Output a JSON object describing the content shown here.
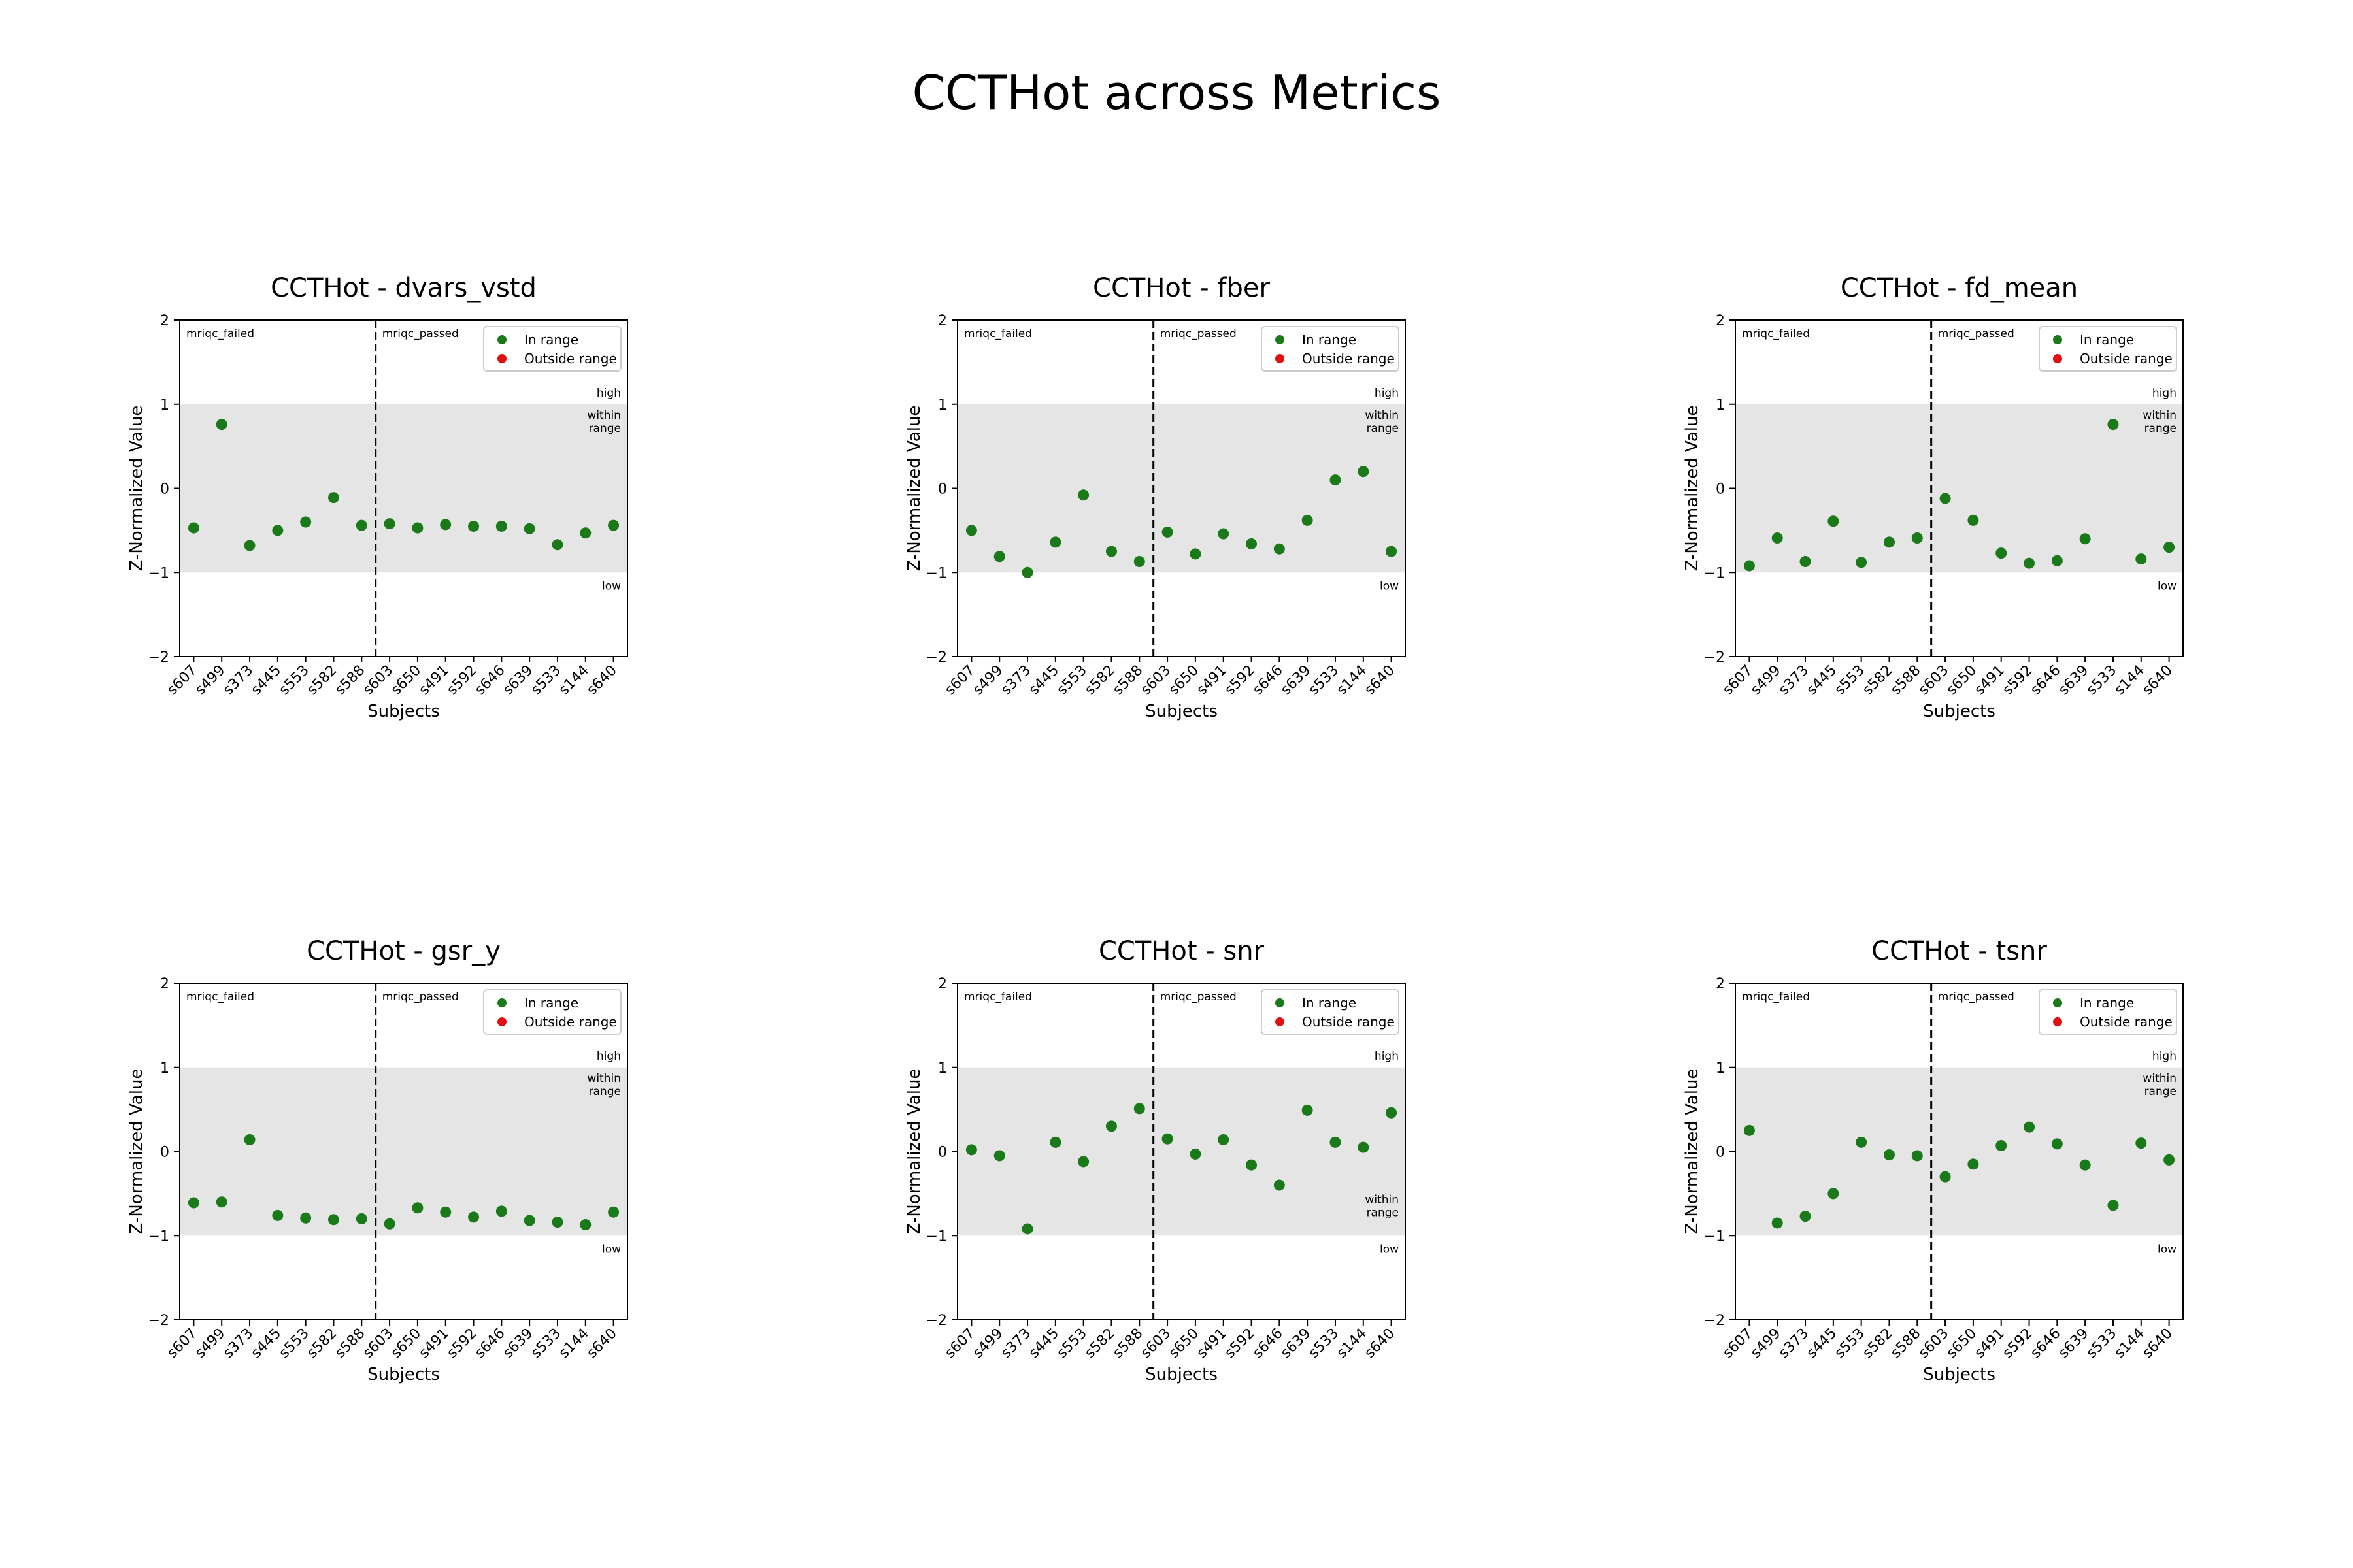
{
  "suptitle": "CCTHot across Metrics",
  "common": {
    "xlabel": "Subjects",
    "ylabel": "Z-Normalized Value",
    "ylim": [
      -2,
      2
    ],
    "yticks": [
      2,
      1,
      0,
      -1,
      -2
    ],
    "ytick_labels": [
      "2",
      "1",
      "0",
      "−1",
      "−2"
    ],
    "shaded_range": [
      -1,
      1
    ],
    "divider_after_index": 6,
    "group_labels": [
      "mriqc_failed",
      "mriqc_passed"
    ],
    "zone_labels": {
      "high": "high",
      "within": [
        "within",
        "range"
      ],
      "low": "low"
    },
    "legend": [
      {
        "label": "In range",
        "color": "#1a7a1a"
      },
      {
        "label": "Outside range",
        "color": "#e01010"
      }
    ],
    "legend_position": "upper right",
    "colors": {
      "in_range": "#1a7a1a",
      "outside_range": "#e01010",
      "shade": "#e5e5e5"
    }
  },
  "chart_data": [
    {
      "type": "scatter",
      "title": "CCTHot - dvars_vstd",
      "categories": [
        "s607",
        "s499",
        "s373",
        "s445",
        "s553",
        "s582",
        "s588",
        "s603",
        "s650",
        "s491",
        "s592",
        "s646",
        "s639",
        "s533",
        "s144",
        "s640"
      ],
      "values": [
        -0.47,
        0.76,
        -0.68,
        -0.5,
        -0.4,
        -0.11,
        -0.44,
        -0.42,
        -0.47,
        -0.43,
        -0.45,
        -0.45,
        -0.48,
        -0.67,
        -0.53,
        -0.44
      ],
      "within_label_pos": "top"
    },
    {
      "type": "scatter",
      "title": "CCTHot - fber",
      "categories": [
        "s607",
        "s499",
        "s373",
        "s445",
        "s553",
        "s582",
        "s588",
        "s603",
        "s650",
        "s491",
        "s592",
        "s646",
        "s639",
        "s533",
        "s144",
        "s640"
      ],
      "values": [
        -0.5,
        -0.81,
        -1.0,
        -0.64,
        -0.08,
        -0.75,
        -0.87,
        -0.52,
        -0.78,
        -0.54,
        -0.66,
        -0.72,
        -0.38,
        0.1,
        0.2,
        -0.75
      ],
      "within_label_pos": "top"
    },
    {
      "type": "scatter",
      "title": "CCTHot - fd_mean",
      "categories": [
        "s607",
        "s499",
        "s373",
        "s445",
        "s553",
        "s582",
        "s588",
        "s603",
        "s650",
        "s491",
        "s592",
        "s646",
        "s639",
        "s533",
        "s144",
        "s640"
      ],
      "values": [
        -0.92,
        -0.59,
        -0.87,
        -0.39,
        -0.88,
        -0.64,
        -0.59,
        -0.12,
        -0.38,
        -0.77,
        -0.89,
        -0.86,
        -0.6,
        0.76,
        -0.84,
        -0.7
      ],
      "within_label_pos": "top"
    },
    {
      "type": "scatter",
      "title": "CCTHot - gsr_y",
      "categories": [
        "s607",
        "s499",
        "s373",
        "s445",
        "s553",
        "s582",
        "s588",
        "s603",
        "s650",
        "s491",
        "s592",
        "s646",
        "s639",
        "s533",
        "s144",
        "s640"
      ],
      "values": [
        -0.61,
        -0.6,
        0.14,
        -0.76,
        -0.79,
        -0.81,
        -0.8,
        -0.86,
        -0.67,
        -0.72,
        -0.78,
        -0.71,
        -0.82,
        -0.84,
        -0.87,
        -0.72
      ],
      "within_label_pos": "top"
    },
    {
      "type": "scatter",
      "title": "CCTHot - snr",
      "categories": [
        "s607",
        "s499",
        "s373",
        "s445",
        "s553",
        "s582",
        "s588",
        "s603",
        "s650",
        "s491",
        "s592",
        "s646",
        "s639",
        "s533",
        "s144",
        "s640"
      ],
      "values": [
        0.02,
        -0.05,
        -0.92,
        0.11,
        -0.12,
        0.3,
        0.51,
        0.15,
        -0.03,
        0.14,
        -0.16,
        -0.4,
        0.49,
        0.11,
        0.05,
        0.46
      ],
      "within_label_pos": "bottom"
    },
    {
      "type": "scatter",
      "title": "CCTHot - tsnr",
      "categories": [
        "s607",
        "s499",
        "s373",
        "s445",
        "s553",
        "s582",
        "s588",
        "s603",
        "s650",
        "s491",
        "s592",
        "s646",
        "s639",
        "s533",
        "s144",
        "s640"
      ],
      "values": [
        0.25,
        -0.85,
        -0.77,
        -0.5,
        0.11,
        -0.04,
        -0.05,
        -0.3,
        -0.15,
        0.07,
        0.29,
        0.09,
        -0.16,
        -0.64,
        0.1,
        -0.1
      ],
      "within_label_pos": "top"
    }
  ]
}
